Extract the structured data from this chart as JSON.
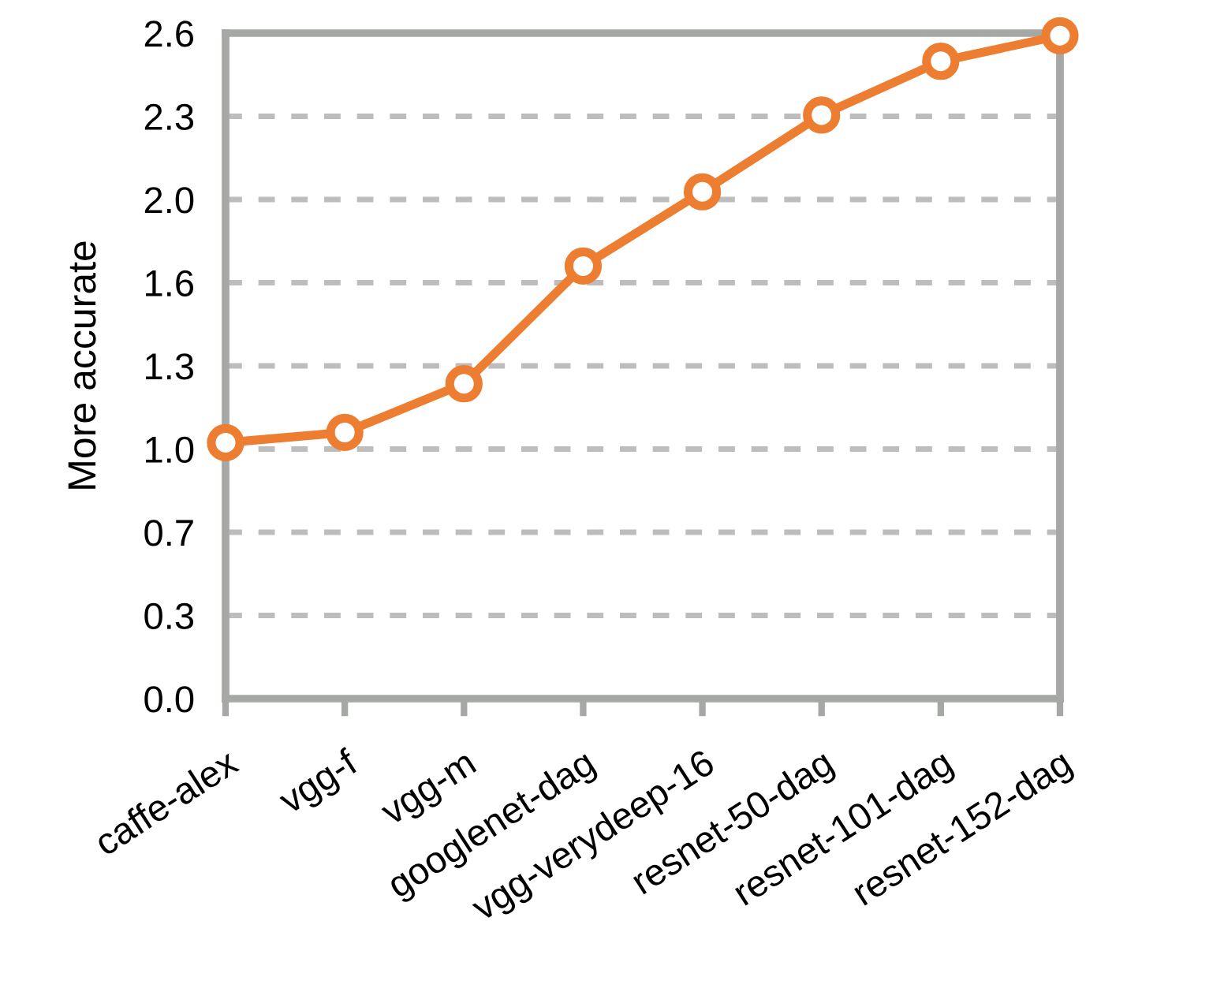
{
  "chart_data": {
    "type": "line",
    "ylabel": "More accurate",
    "categories": [
      "caffe-alex",
      "vgg-f",
      "vgg-m",
      "googlenet-dag",
      "vgg-verydeep-16",
      "resnet-50-dag",
      "resnet-101-dag",
      "resnet-152-dag"
    ],
    "series": [
      {
        "color": "#ed7d31",
        "values": [
          1.0,
          1.04,
          1.23,
          1.69,
          1.98,
          2.28,
          2.49,
          2.59
        ]
      }
    ],
    "ylim": [
      0,
      2.6
    ],
    "yticks": [
      {
        "value": 0,
        "label": "0.0"
      },
      {
        "value": 0.325,
        "label": "0.3"
      },
      {
        "value": 0.65,
        "label": "0.7"
      },
      {
        "value": 0.975,
        "label": "1.0"
      },
      {
        "value": 1.3,
        "label": "1.3"
      },
      {
        "value": 1.625,
        "label": "1.6"
      },
      {
        "value": 1.95,
        "label": "2.0"
      },
      {
        "value": 2.275,
        "label": "2.3"
      },
      {
        "value": 2.6,
        "label": "2.6"
      }
    ],
    "grid": "y",
    "marker": "circle",
    "line_style": "solid",
    "legend": false
  }
}
